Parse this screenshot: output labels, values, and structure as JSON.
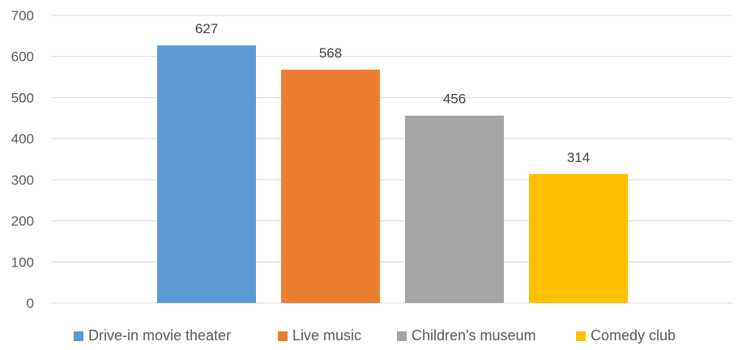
{
  "chart_data": {
    "type": "bar",
    "categories": [
      "Drive-in movie theater",
      "Live music",
      "Children's museum",
      "Comedy club"
    ],
    "values": [
      627,
      568,
      456,
      314
    ],
    "colors": [
      "#5B9BD5",
      "#ED7D31",
      "#A5A5A5",
      "#FFC000"
    ],
    "ylim": [
      0,
      700
    ],
    "yticks": [
      "0",
      "100",
      "200",
      "300",
      "400",
      "500",
      "600",
      "700"
    ],
    "grid": true,
    "legend_position": "bottom",
    "title": "",
    "xlabel": "",
    "ylabel": ""
  }
}
